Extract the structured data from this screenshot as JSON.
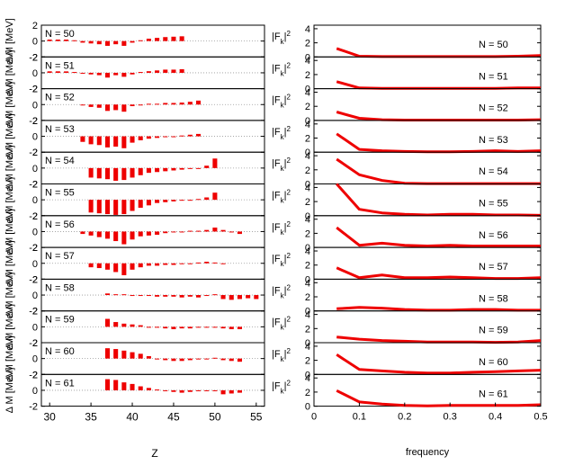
{
  "chart_data": [
    {
      "type": "bar",
      "title": "",
      "xlabel": "Z",
      "ylabel": "Δ M [MeV]",
      "xlim": [
        29,
        56
      ],
      "ylim": [
        -2,
        2
      ],
      "x_ticks": [
        "30",
        "35",
        "40",
        "45",
        "50",
        "55"
      ],
      "y_ticks": [
        "-2",
        "0",
        "2"
      ],
      "reference_line": 0,
      "bar_color": "#ee0000",
      "panels": [
        {
          "label": "N = 50",
          "x": [
            30,
            31,
            32,
            33,
            34,
            35,
            36,
            37,
            38,
            39,
            40,
            41,
            42,
            43,
            44,
            45,
            46
          ],
          "values": [
            0.5,
            0.2,
            0.2,
            0.1,
            -0.2,
            -0.3,
            -0.4,
            -0.6,
            -0.4,
            -0.6,
            -0.2,
            0.1,
            0.3,
            0.4,
            0.5,
            0.55,
            0.6
          ]
        },
        {
          "label": "N = 51",
          "x": [
            30,
            31,
            32,
            33,
            34,
            35,
            36,
            37,
            38,
            39,
            40,
            41,
            42,
            43,
            44,
            45,
            46
          ],
          "values": [
            0.5,
            0.3,
            0.2,
            0.1,
            -0.1,
            -0.2,
            -0.3,
            -0.6,
            -0.3,
            -0.5,
            -0.2,
            0.1,
            0.2,
            0.3,
            0.4,
            0.4,
            0.45
          ]
        },
        {
          "label": "N = 52",
          "x": [
            34,
            35,
            36,
            37,
            38,
            39,
            40,
            41,
            42,
            43,
            44,
            45,
            46,
            47,
            48
          ],
          "values": [
            -0.1,
            -0.3,
            -0.4,
            -0.8,
            -0.7,
            -0.9,
            -0.2,
            -0.1,
            0.1,
            0.1,
            0.2,
            0.2,
            0.25,
            0.35,
            0.5
          ]
        },
        {
          "label": "N = 53",
          "x": [
            34,
            35,
            36,
            37,
            38,
            39,
            40,
            41,
            42,
            43,
            44,
            45,
            46,
            47,
            48
          ],
          "values": [
            -0.7,
            -1.0,
            -1.1,
            -1.4,
            -1.3,
            -1.5,
            -0.8,
            -0.5,
            -0.3,
            -0.2,
            -0.1,
            0.0,
            0.1,
            0.2,
            0.3
          ]
        },
        {
          "label": "N = 54",
          "x": [
            35,
            36,
            37,
            38,
            39,
            40,
            41,
            42,
            43,
            44,
            45,
            46,
            47,
            48,
            49,
            50
          ],
          "values": [
            -1.2,
            -1.3,
            -1.4,
            -1.6,
            -1.5,
            -1.2,
            -0.9,
            -0.6,
            -0.5,
            -0.4,
            -0.3,
            -0.2,
            -0.1,
            0.0,
            0.3,
            1.2
          ]
        },
        {
          "label": "N = 55",
          "x": [
            35,
            36,
            37,
            38,
            39,
            40,
            41,
            42,
            43,
            44,
            45,
            46,
            47,
            48,
            49,
            50
          ],
          "values": [
            -1.6,
            -1.7,
            -1.8,
            -1.9,
            -1.8,
            -1.4,
            -1.0,
            -0.7,
            -0.4,
            -0.3,
            -0.2,
            -0.1,
            0.0,
            0.1,
            0.3,
            0.9
          ]
        },
        {
          "label": "N = 56",
          "x": [
            34,
            35,
            36,
            37,
            38,
            39,
            40,
            41,
            42,
            43,
            44,
            45,
            46,
            47,
            48,
            49,
            50,
            51,
            52,
            53
          ],
          "values": [
            -0.3,
            -0.5,
            -0.7,
            -0.9,
            -1.2,
            -1.6,
            -1.0,
            -0.6,
            -0.5,
            -0.4,
            -0.2,
            -0.1,
            0.0,
            0.1,
            0.1,
            0.2,
            0.5,
            0.2,
            -0.1,
            -0.3
          ]
        },
        {
          "label": "N = 57",
          "x": [
            35,
            36,
            37,
            38,
            39,
            40,
            41,
            42,
            43,
            44,
            45,
            46,
            47,
            48,
            49,
            50,
            51
          ],
          "values": [
            -0.5,
            -0.6,
            -0.8,
            -1.1,
            -1.5,
            -0.8,
            -0.5,
            -0.3,
            -0.3,
            -0.2,
            -0.2,
            -0.1,
            0.0,
            0.1,
            0.2,
            0.1,
            0.0
          ]
        },
        {
          "label": "N = 58",
          "x": [
            37,
            38,
            39,
            40,
            41,
            42,
            43,
            44,
            45,
            46,
            47,
            48,
            49,
            50,
            51,
            52,
            53,
            54,
            55
          ],
          "values": [
            0.2,
            0.1,
            0.1,
            0.0,
            -0.1,
            -0.1,
            -0.2,
            -0.2,
            -0.2,
            -0.3,
            -0.2,
            -0.3,
            -0.1,
            0.1,
            -0.5,
            -0.6,
            -0.5,
            -0.4,
            -0.5
          ]
        },
        {
          "label": "N = 59",
          "x": [
            37,
            38,
            39,
            40,
            41,
            42,
            43,
            44,
            45,
            46,
            47,
            48,
            49,
            50,
            51,
            52,
            53
          ],
          "values": [
            1.0,
            0.6,
            0.4,
            0.3,
            0.2,
            0.0,
            -0.1,
            -0.2,
            -0.3,
            -0.2,
            -0.2,
            -0.1,
            0.0,
            0.0,
            -0.2,
            -0.3,
            -0.3
          ]
        },
        {
          "label": "N = 60",
          "x": [
            37,
            38,
            39,
            40,
            41,
            42,
            43,
            44,
            45,
            46,
            47,
            48,
            49,
            50,
            51,
            52,
            53
          ],
          "values": [
            1.3,
            1.2,
            1.0,
            0.8,
            0.6,
            0.3,
            0.0,
            -0.2,
            -0.3,
            -0.3,
            -0.2,
            -0.1,
            0.0,
            0.1,
            -0.2,
            -0.3,
            -0.4
          ]
        },
        {
          "label": "N = 61",
          "x": [
            37,
            38,
            39,
            40,
            41,
            42,
            43,
            44,
            45,
            46,
            47,
            48,
            49,
            50,
            51,
            52,
            53
          ],
          "values": [
            1.4,
            1.3,
            1.0,
            0.8,
            0.5,
            0.3,
            0.1,
            -0.1,
            -0.2,
            -0.3,
            -0.2,
            -0.1,
            0.0,
            -0.1,
            -0.5,
            -0.4,
            -0.3
          ]
        }
      ]
    },
    {
      "type": "line",
      "title": "",
      "xlabel": "frequency",
      "ylabel": "|F_k|^2",
      "xlim": [
        0,
        0.5
      ],
      "ylim": [
        0,
        4.5
      ],
      "x_ticks": [
        "0",
        "0.1",
        "0.2",
        "0.3",
        "0.4",
        "0.5"
      ],
      "y_ticks": [
        "0",
        "2",
        "4"
      ],
      "line_color": "#ee0000",
      "x": [
        0.05,
        0.1,
        0.15,
        0.2,
        0.25,
        0.3,
        0.35,
        0.4,
        0.45,
        0.5
      ],
      "series": [
        {
          "label": "N = 50",
          "values": [
            1.2,
            0.1,
            0.05,
            0.05,
            0.05,
            0.05,
            0.05,
            0.05,
            0.1,
            0.2
          ]
        },
        {
          "label": "N = 51",
          "values": [
            1.0,
            0.1,
            0.05,
            0.05,
            0.05,
            0.05,
            0.05,
            0.05,
            0.1,
            0.1
          ]
        },
        {
          "label": "N = 52",
          "values": [
            1.2,
            0.3,
            0.1,
            0.05,
            0.05,
            0.05,
            0.05,
            0.05,
            0.05,
            0.1
          ]
        },
        {
          "label": "N = 53",
          "values": [
            2.6,
            0.4,
            0.2,
            0.1,
            0.05,
            0.05,
            0.1,
            0.2,
            0.1,
            0.2
          ]
        },
        {
          "label": "N = 54",
          "values": [
            3.5,
            1.3,
            0.5,
            0.1,
            0.05,
            0.05,
            0.05,
            0.05,
            0.05,
            0.05
          ]
        },
        {
          "label": "N = 55",
          "values": [
            5.0,
            0.9,
            0.4,
            0.2,
            0.1,
            0.2,
            0.2,
            0.1,
            0.1,
            0.05
          ]
        },
        {
          "label": "N = 56",
          "values": [
            2.8,
            0.3,
            0.6,
            0.3,
            0.2,
            0.3,
            0.2,
            0.2,
            0.2,
            0.2
          ]
        },
        {
          "label": "N = 57",
          "values": [
            1.6,
            0.2,
            0.6,
            0.2,
            0.2,
            0.3,
            0.2,
            0.1,
            0.1,
            0.2
          ]
        },
        {
          "label": "N = 58",
          "values": [
            0.3,
            0.5,
            0.4,
            0.2,
            0.1,
            0.1,
            0.2,
            0.2,
            0.1,
            0.1
          ]
        },
        {
          "label": "N = 59",
          "values": [
            0.8,
            0.5,
            0.3,
            0.2,
            0.1,
            0.1,
            0.1,
            0.05,
            0.1,
            0.3
          ]
        },
        {
          "label": "N = 60",
          "values": [
            2.8,
            0.7,
            0.5,
            0.3,
            0.2,
            0.2,
            0.3,
            0.4,
            0.5,
            0.6
          ]
        },
        {
          "label": "N = 61",
          "values": [
            2.2,
            0.6,
            0.3,
            0.1,
            0.05,
            0.1,
            0.1,
            0.1,
            0.1,
            0.2
          ]
        }
      ]
    }
  ]
}
